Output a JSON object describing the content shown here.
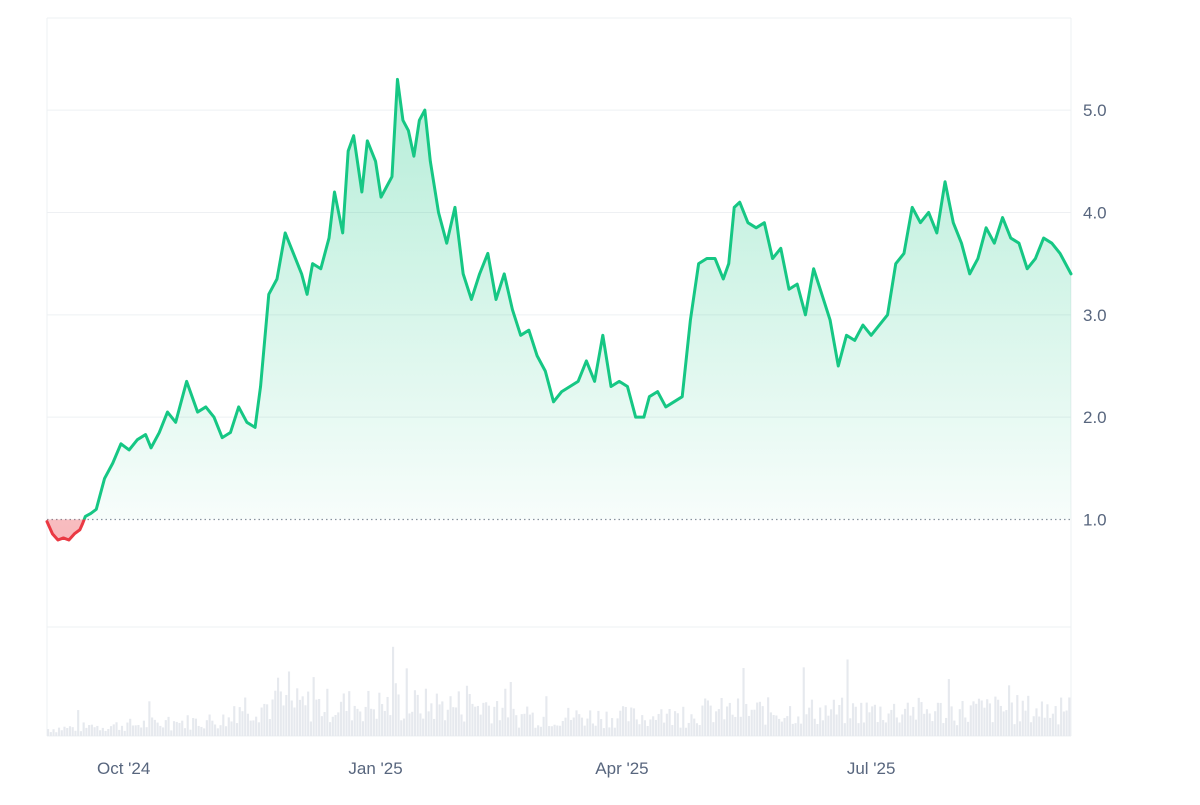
{
  "chart_data": {
    "type": "area",
    "baseline": 1.0,
    "ylim": [
      -0.05,
      5.9
    ],
    "y_ticks": [
      "1.0",
      "2.0",
      "3.0",
      "4.0",
      "5.0"
    ],
    "x_ticks": [
      {
        "label": "Oct '24",
        "date": "2024-10-01"
      },
      {
        "label": "Jan '25",
        "date": "2025-01-01"
      },
      {
        "label": "Apr '25",
        "date": "2025-04-01"
      },
      {
        "label": "Jul '25",
        "date": "2025-07-01"
      }
    ],
    "x_range": [
      "2024-09-03",
      "2025-09-12"
    ],
    "colors": {
      "up_line": "#16c784",
      "down_line": "#ea3943",
      "up_fill": "#16c784",
      "down_fill": "#ea3943",
      "grid": "#eef0f3",
      "baseline": "#8a929e",
      "axis_text": "#58667e",
      "volume": "#e6e9ee"
    },
    "series": [
      {
        "values": [
          [
            "2024-09-03",
            0.98
          ],
          [
            "2024-09-05",
            0.86
          ],
          [
            "2024-09-07",
            0.8
          ],
          [
            "2024-09-09",
            0.82
          ],
          [
            "2024-09-11",
            0.8
          ],
          [
            "2024-09-13",
            0.86
          ],
          [
            "2024-09-15",
            0.9
          ],
          [
            "2024-09-16",
            0.96
          ],
          [
            "2024-09-17",
            1.03
          ],
          [
            "2024-09-19",
            1.06
          ],
          [
            "2024-09-21",
            1.1
          ],
          [
            "2024-09-24",
            1.4
          ],
          [
            "2024-09-27",
            1.55
          ],
          [
            "2024-09-30",
            1.74
          ],
          [
            "2024-10-03",
            1.68
          ],
          [
            "2024-10-06",
            1.78
          ],
          [
            "2024-10-09",
            1.83
          ],
          [
            "2024-10-11",
            1.7
          ],
          [
            "2024-10-14",
            1.85
          ],
          [
            "2024-10-17",
            2.05
          ],
          [
            "2024-10-20",
            1.95
          ],
          [
            "2024-10-24",
            2.35
          ],
          [
            "2024-10-28",
            2.05
          ],
          [
            "2024-10-31",
            2.1
          ],
          [
            "2024-11-03",
            2.0
          ],
          [
            "2024-11-06",
            1.8
          ],
          [
            "2024-11-09",
            1.85
          ],
          [
            "2024-11-12",
            2.1
          ],
          [
            "2024-11-15",
            1.95
          ],
          [
            "2024-11-18",
            1.9
          ],
          [
            "2024-11-20",
            2.3
          ],
          [
            "2024-11-23",
            3.2
          ],
          [
            "2024-11-26",
            3.35
          ],
          [
            "2024-11-29",
            3.8
          ],
          [
            "2024-12-02",
            3.6
          ],
          [
            "2024-12-05",
            3.4
          ],
          [
            "2024-12-07",
            3.2
          ],
          [
            "2024-12-09",
            3.5
          ],
          [
            "2024-12-12",
            3.45
          ],
          [
            "2024-12-15",
            3.75
          ],
          [
            "2024-12-17",
            4.2
          ],
          [
            "2024-12-20",
            3.8
          ],
          [
            "2024-12-22",
            4.6
          ],
          [
            "2024-12-24",
            4.75
          ],
          [
            "2024-12-27",
            4.2
          ],
          [
            "2024-12-29",
            4.7
          ],
          [
            "2025-01-01",
            4.5
          ],
          [
            "2025-01-03",
            4.15
          ],
          [
            "2025-01-05",
            4.25
          ],
          [
            "2025-01-07",
            4.35
          ],
          [
            "2025-01-09",
            5.3
          ],
          [
            "2025-01-11",
            4.9
          ],
          [
            "2025-01-13",
            4.8
          ],
          [
            "2025-01-15",
            4.55
          ],
          [
            "2025-01-17",
            4.9
          ],
          [
            "2025-01-19",
            5.0
          ],
          [
            "2025-01-21",
            4.5
          ],
          [
            "2025-01-24",
            4.0
          ],
          [
            "2025-01-27",
            3.7
          ],
          [
            "2025-01-30",
            4.05
          ],
          [
            "2025-02-02",
            3.4
          ],
          [
            "2025-02-05",
            3.15
          ],
          [
            "2025-02-08",
            3.4
          ],
          [
            "2025-02-11",
            3.6
          ],
          [
            "2025-02-14",
            3.15
          ],
          [
            "2025-02-17",
            3.4
          ],
          [
            "2025-02-20",
            3.05
          ],
          [
            "2025-02-23",
            2.8
          ],
          [
            "2025-02-26",
            2.85
          ],
          [
            "2025-03-01",
            2.6
          ],
          [
            "2025-03-04",
            2.45
          ],
          [
            "2025-03-07",
            2.15
          ],
          [
            "2025-03-10",
            2.25
          ],
          [
            "2025-03-13",
            2.3
          ],
          [
            "2025-03-16",
            2.35
          ],
          [
            "2025-03-19",
            2.55
          ],
          [
            "2025-03-22",
            2.35
          ],
          [
            "2025-03-25",
            2.8
          ],
          [
            "2025-03-28",
            2.3
          ],
          [
            "2025-03-31",
            2.35
          ],
          [
            "2025-04-03",
            2.3
          ],
          [
            "2025-04-06",
            2.0
          ],
          [
            "2025-04-09",
            2.0
          ],
          [
            "2025-04-11",
            2.2
          ],
          [
            "2025-04-14",
            2.25
          ],
          [
            "2025-04-17",
            2.1
          ],
          [
            "2025-04-20",
            2.15
          ],
          [
            "2025-04-23",
            2.2
          ],
          [
            "2025-04-26",
            2.95
          ],
          [
            "2025-04-29",
            3.5
          ],
          [
            "2025-05-02",
            3.55
          ],
          [
            "2025-05-05",
            3.55
          ],
          [
            "2025-05-08",
            3.35
          ],
          [
            "2025-05-10",
            3.5
          ],
          [
            "2025-05-12",
            4.05
          ],
          [
            "2025-05-14",
            4.1
          ],
          [
            "2025-05-17",
            3.9
          ],
          [
            "2025-05-20",
            3.85
          ],
          [
            "2025-05-23",
            3.9
          ],
          [
            "2025-05-26",
            3.55
          ],
          [
            "2025-05-29",
            3.65
          ],
          [
            "2025-06-01",
            3.25
          ],
          [
            "2025-06-04",
            3.3
          ],
          [
            "2025-06-07",
            3.0
          ],
          [
            "2025-06-10",
            3.45
          ],
          [
            "2025-06-13",
            3.2
          ],
          [
            "2025-06-16",
            2.95
          ],
          [
            "2025-06-19",
            2.5
          ],
          [
            "2025-06-22",
            2.8
          ],
          [
            "2025-06-25",
            2.75
          ],
          [
            "2025-06-28",
            2.9
          ],
          [
            "2025-07-01",
            2.8
          ],
          [
            "2025-07-04",
            2.9
          ],
          [
            "2025-07-07",
            3.0
          ],
          [
            "2025-07-10",
            3.5
          ],
          [
            "2025-07-13",
            3.6
          ],
          [
            "2025-07-16",
            4.05
          ],
          [
            "2025-07-19",
            3.9
          ],
          [
            "2025-07-22",
            4.0
          ],
          [
            "2025-07-25",
            3.8
          ],
          [
            "2025-07-28",
            4.3
          ],
          [
            "2025-07-31",
            3.9
          ],
          [
            "2025-08-03",
            3.7
          ],
          [
            "2025-08-06",
            3.4
          ],
          [
            "2025-08-09",
            3.55
          ],
          [
            "2025-08-12",
            3.85
          ],
          [
            "2025-08-15",
            3.7
          ],
          [
            "2025-08-18",
            3.95
          ],
          [
            "2025-08-21",
            3.75
          ],
          [
            "2025-08-24",
            3.7
          ],
          [
            "2025-08-27",
            3.45
          ],
          [
            "2025-08-30",
            3.55
          ],
          [
            "2025-09-02",
            3.75
          ],
          [
            "2025-09-05",
            3.7
          ],
          [
            "2025-09-08",
            3.6
          ],
          [
            "2025-09-12",
            3.4
          ]
        ]
      }
    ]
  }
}
